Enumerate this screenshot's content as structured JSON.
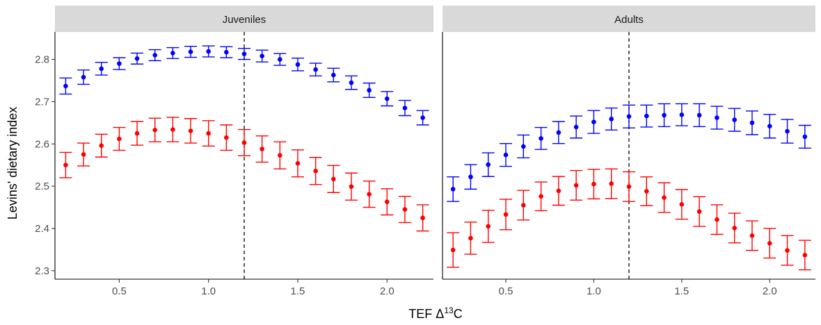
{
  "chart_data": {
    "type": "scatter",
    "ylabel": "Levins' dietary index",
    "xlabel": "TEF Δ13C",
    "xlabel_parts": {
      "prefix": "TEF Δ",
      "superscript": "13",
      "suffix": "C"
    },
    "xlim": [
      0.14,
      2.26
    ],
    "ylim": [
      2.28,
      2.865
    ],
    "x_ticks": [
      0.5,
      1.0,
      1.5,
      2.0
    ],
    "x_tick_labels": [
      "0.5",
      "1.0",
      "1.5",
      "2.0"
    ],
    "y_ticks": [
      2.3,
      2.4,
      2.5,
      2.6,
      2.7,
      2.8
    ],
    "y_tick_labels": [
      "2.3",
      "2.4",
      "2.5",
      "2.6",
      "2.7",
      "2.8"
    ],
    "grid": false,
    "reference_line": {
      "x": 1.2,
      "style": "dashed",
      "color": "#000000"
    },
    "colors": {
      "blue": "#0000ff",
      "red": "#ff0000"
    },
    "panels": [
      {
        "title": "Juveniles",
        "series": [
          {
            "color": "blue",
            "x": [
              0.2,
              0.3,
              0.4,
              0.5,
              0.6,
              0.7,
              0.8,
              0.9,
              1.0,
              1.1,
              1.2,
              1.3,
              1.4,
              1.5,
              1.6,
              1.7,
              1.8,
              1.9,
              2.0,
              2.1,
              2.2
            ],
            "y": [
              2.737,
              2.758,
              2.778,
              2.79,
              2.802,
              2.81,
              2.815,
              2.818,
              2.819,
              2.817,
              2.813,
              2.808,
              2.8,
              2.788,
              2.776,
              2.763,
              2.745,
              2.727,
              2.707,
              2.685,
              2.662
            ],
            "ymin": [
              2.718,
              2.741,
              2.763,
              2.776,
              2.789,
              2.797,
              2.802,
              2.805,
              2.806,
              2.804,
              2.8,
              2.794,
              2.786,
              2.773,
              2.761,
              2.747,
              2.729,
              2.71,
              2.69,
              2.667,
              2.645
            ],
            "ymax": [
              2.756,
              2.775,
              2.793,
              2.804,
              2.815,
              2.823,
              2.828,
              2.831,
              2.832,
              2.83,
              2.826,
              2.822,
              2.814,
              2.803,
              2.791,
              2.779,
              2.761,
              2.744,
              2.724,
              2.703,
              2.679
            ]
          },
          {
            "color": "red",
            "x": [
              0.2,
              0.3,
              0.4,
              0.5,
              0.6,
              0.7,
              0.8,
              0.9,
              1.0,
              1.1,
              1.2,
              1.3,
              1.4,
              1.5,
              1.6,
              1.7,
              1.8,
              1.9,
              2.0,
              2.1,
              2.2
            ],
            "y": [
              2.55,
              2.575,
              2.596,
              2.612,
              2.625,
              2.633,
              2.634,
              2.631,
              2.625,
              2.615,
              2.603,
              2.588,
              2.573,
              2.554,
              2.536,
              2.517,
              2.499,
              2.481,
              2.463,
              2.445,
              2.425
            ],
            "ymin": [
              2.52,
              2.548,
              2.569,
              2.585,
              2.597,
              2.605,
              2.605,
              2.602,
              2.595,
              2.585,
              2.572,
              2.557,
              2.541,
              2.522,
              2.504,
              2.485,
              2.467,
              2.45,
              2.432,
              2.414,
              2.394
            ],
            "ymax": [
              2.58,
              2.602,
              2.623,
              2.639,
              2.653,
              2.661,
              2.663,
              2.66,
              2.655,
              2.645,
              2.634,
              2.619,
              2.605,
              2.586,
              2.568,
              2.549,
              2.531,
              2.512,
              2.494,
              2.476,
              2.456
            ]
          }
        ]
      },
      {
        "title": "Adults",
        "series": [
          {
            "color": "blue",
            "x": [
              0.2,
              0.3,
              0.4,
              0.5,
              0.6,
              0.7,
              0.8,
              0.9,
              1.0,
              1.1,
              1.2,
              1.3,
              1.4,
              1.5,
              1.6,
              1.7,
              1.8,
              1.9,
              2.0,
              2.1,
              2.2
            ],
            "y": [
              2.493,
              2.522,
              2.551,
              2.574,
              2.594,
              2.613,
              2.627,
              2.64,
              2.652,
              2.659,
              2.665,
              2.666,
              2.668,
              2.669,
              2.668,
              2.662,
              2.657,
              2.65,
              2.642,
              2.63,
              2.617
            ],
            "ymin": [
              2.464,
              2.493,
              2.523,
              2.547,
              2.567,
              2.587,
              2.601,
              2.614,
              2.625,
              2.633,
              2.638,
              2.64,
              2.641,
              2.643,
              2.641,
              2.635,
              2.63,
              2.622,
              2.614,
              2.602,
              2.59
            ],
            "ymax": [
              2.522,
              2.551,
              2.579,
              2.601,
              2.621,
              2.639,
              2.653,
              2.666,
              2.679,
              2.685,
              2.692,
              2.692,
              2.695,
              2.695,
              2.695,
              2.689,
              2.684,
              2.678,
              2.67,
              2.658,
              2.644
            ]
          },
          {
            "color": "red",
            "x": [
              0.2,
              0.3,
              0.4,
              0.5,
              0.6,
              0.7,
              0.8,
              0.9,
              1.0,
              1.1,
              1.2,
              1.3,
              1.4,
              1.5,
              1.6,
              1.7,
              1.8,
              1.9,
              2.0,
              2.1,
              2.2
            ],
            "y": [
              2.349,
              2.377,
              2.405,
              2.433,
              2.455,
              2.476,
              2.489,
              2.502,
              2.505,
              2.506,
              2.499,
              2.488,
              2.473,
              2.457,
              2.44,
              2.421,
              2.401,
              2.383,
              2.365,
              2.348,
              2.337
            ],
            "ymin": [
              2.308,
              2.339,
              2.367,
              2.397,
              2.42,
              2.442,
              2.455,
              2.467,
              2.47,
              2.471,
              2.464,
              2.454,
              2.438,
              2.422,
              2.405,
              2.386,
              2.366,
              2.348,
              2.33,
              2.313,
              2.302
            ],
            "ymax": [
              2.39,
              2.415,
              2.443,
              2.469,
              2.49,
              2.51,
              2.523,
              2.537,
              2.54,
              2.541,
              2.534,
              2.522,
              2.508,
              2.492,
              2.475,
              2.456,
              2.436,
              2.418,
              2.4,
              2.383,
              2.372
            ]
          }
        ]
      }
    ]
  }
}
